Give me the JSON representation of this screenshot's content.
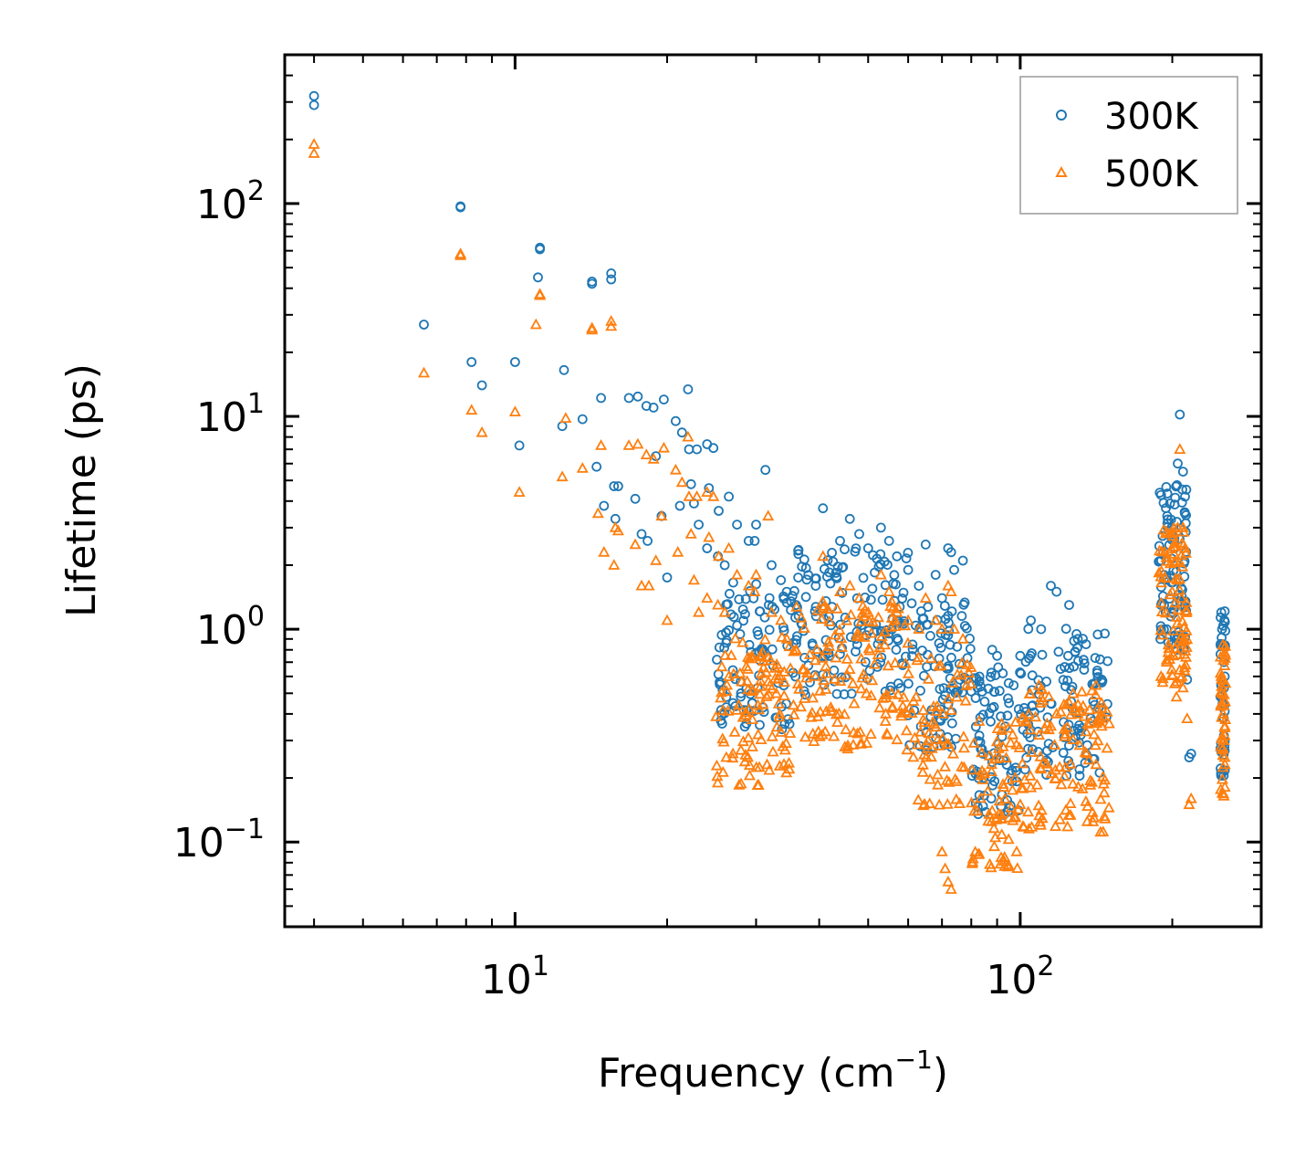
{
  "chart_data": {
    "type": "scatter",
    "title": "",
    "xlabel": "Frequency (cm",
    "xlabel_sup": "−1",
    "xlabel_end": ")",
    "ylabel": "Lifetime (ps)",
    "xscale": "log",
    "yscale": "log",
    "xlim": [
      3.5,
      300
    ],
    "ylim": [
      0.04,
      500
    ],
    "xticks": [
      {
        "value": 10,
        "base": "10",
        "exp": "1"
      },
      {
        "value": 100,
        "base": "10",
        "exp": "2"
      }
    ],
    "yticks": [
      {
        "value": 0.1,
        "base": "10",
        "exp": "−1"
      },
      {
        "value": 1,
        "base": "10",
        "exp": "0"
      },
      {
        "value": 10,
        "base": "10",
        "exp": "1"
      },
      {
        "value": 100,
        "base": "10",
        "exp": "2"
      }
    ],
    "legend_position": "top-right",
    "grid": false,
    "series": [
      {
        "name": "300K",
        "marker": "circle",
        "color": "#1f77b4",
        "points": [
          [
            4.0,
            320
          ],
          [
            4.0,
            290
          ],
          [
            7.8,
            97
          ],
          [
            7.8,
            96
          ],
          [
            11.2,
            62
          ],
          [
            11.2,
            61
          ],
          [
            11.1,
            45
          ],
          [
            14.2,
            43
          ],
          [
            14.2,
            42
          ],
          [
            15.5,
            47
          ],
          [
            15.5,
            44
          ],
          [
            6.6,
            27
          ],
          [
            8.2,
            18
          ],
          [
            8.6,
            14
          ],
          [
            10.0,
            18
          ],
          [
            10.2,
            7.3
          ],
          [
            12.5,
            16.5
          ],
          [
            12.4,
            9.0
          ],
          [
            13.6,
            9.7
          ],
          [
            14.8,
            12.2
          ],
          [
            14.5,
            5.8
          ],
          [
            15.0,
            3.8
          ],
          [
            15.7,
            4.7
          ],
          [
            16.0,
            4.7
          ],
          [
            15.8,
            3.3
          ],
          [
            16.8,
            12.2
          ],
          [
            17.5,
            12.4
          ],
          [
            18.2,
            11.2
          ],
          [
            18.8,
            11.0
          ],
          [
            19.7,
            12.0
          ],
          [
            17.3,
            4.1
          ],
          [
            17.8,
            2.8
          ],
          [
            18.3,
            2.6
          ],
          [
            19.0,
            6.5
          ],
          [
            19.5,
            3.4
          ],
          [
            20.8,
            9.5
          ],
          [
            21.4,
            8.4
          ],
          [
            22.0,
            13.4
          ],
          [
            22.1,
            7.0
          ],
          [
            22.9,
            7.0
          ],
          [
            24.0,
            7.4
          ],
          [
            24.7,
            7.1
          ],
          [
            21.2,
            3.8
          ],
          [
            22.3,
            4.8
          ],
          [
            20.0,
            1.75
          ],
          [
            22.6,
            3.9
          ],
          [
            23.1,
            3.1
          ],
          [
            24.2,
            4.6
          ],
          [
            25.3,
            3.6
          ],
          [
            24.0,
            2.4
          ],
          [
            25.2,
            2.2
          ],
          [
            26.0,
            2.0
          ],
          [
            26.5,
            4.2
          ],
          [
            27.5,
            3.1
          ],
          [
            29.0,
            2.6
          ],
          [
            29.8,
            2.6
          ],
          [
            30.0,
            3.1
          ],
          [
            31.3,
            5.6
          ],
          [
            32.2,
            2.0
          ],
          [
            33.6,
            1.7
          ],
          [
            34.5,
            1.5
          ],
          [
            36.0,
            1.3
          ],
          [
            40.7,
            3.7
          ],
          [
            44.0,
            2.6
          ],
          [
            46.0,
            3.3
          ],
          [
            48.0,
            2.8
          ],
          [
            50.0,
            2.4
          ],
          [
            53.0,
            3.0
          ],
          [
            55.0,
            2.6
          ],
          [
            57.0,
            2.2
          ],
          [
            60.0,
            1.9
          ],
          [
            63.0,
            1.6
          ],
          [
            65.0,
            2.5
          ],
          [
            68.0,
            1.8
          ],
          [
            70.0,
            1.4
          ],
          [
            72.0,
            2.4
          ],
          [
            73.0,
            2.3
          ],
          [
            74.0,
            1.9
          ],
          [
            77.0,
            2.1
          ],
          [
            26.2,
            0.43
          ],
          [
            27.0,
            0.45
          ],
          [
            28.0,
            0.5
          ],
          [
            29.5,
            0.45
          ],
          [
            88.0,
            0.8
          ],
          [
            90.0,
            0.75
          ],
          [
            95.0,
            0.45
          ],
          [
            100.0,
            0.75
          ],
          [
            105.0,
            1.1
          ],
          [
            110.0,
            1.0
          ],
          [
            115.0,
            1.6
          ],
          [
            118.0,
            1.5
          ],
          [
            125.0,
            1.3
          ],
          [
            130.0,
            0.9
          ],
          [
            135.0,
            0.85
          ],
          [
            140.0,
            0.55
          ],
          [
            145.0,
            0.58
          ],
          [
            190.0,
            1.3
          ],
          [
            195.0,
            1.0
          ],
          [
            200.0,
            2.8
          ],
          [
            205.0,
            6.0
          ],
          [
            207.0,
            10.2
          ],
          [
            210.0,
            5.5
          ],
          [
            212.0,
            4.2
          ],
          [
            214.0,
            0.58
          ],
          [
            216.0,
            0.25
          ],
          [
            218.0,
            0.26
          ],
          [
            250.0,
            1.2
          ],
          [
            251.0,
            1.0
          ],
          [
            252.0,
            0.85
          ],
          [
            253.0,
            0.7
          ],
          [
            254.0,
            0.6
          ]
        ]
      },
      {
        "name": "500K",
        "marker": "triangle",
        "color": "#ff7f0e",
        "points": [
          [
            4.0,
            190
          ],
          [
            4.0,
            172
          ],
          [
            7.8,
            58
          ],
          [
            7.8,
            57
          ],
          [
            11.2,
            37.5
          ],
          [
            11.2,
            37
          ],
          [
            11.0,
            27
          ],
          [
            14.2,
            26
          ],
          [
            14.2,
            25.5
          ],
          [
            15.5,
            28
          ],
          [
            15.5,
            26.5
          ],
          [
            6.6,
            16
          ],
          [
            8.2,
            10.7
          ],
          [
            8.6,
            8.4
          ],
          [
            10.0,
            10.5
          ],
          [
            10.2,
            4.4
          ],
          [
            12.4,
            5.2
          ],
          [
            12.6,
            9.8
          ],
          [
            13.6,
            5.7
          ],
          [
            14.8,
            7.3
          ],
          [
            14.6,
            3.5
          ],
          [
            15.0,
            2.3
          ],
          [
            15.7,
            2.0
          ],
          [
            16.0,
            2.9
          ],
          [
            15.8,
            3.0
          ],
          [
            16.8,
            7.3
          ],
          [
            17.5,
            7.4
          ],
          [
            18.2,
            6.6
          ],
          [
            18.8,
            6.3
          ],
          [
            19.7,
            7.1
          ],
          [
            17.3,
            2.5
          ],
          [
            17.8,
            1.6
          ],
          [
            18.4,
            1.6
          ],
          [
            19.0,
            2.1
          ],
          [
            19.5,
            3.4
          ],
          [
            20.8,
            5.6
          ],
          [
            21.4,
            4.9
          ],
          [
            22.0,
            8.0
          ],
          [
            22.1,
            4.2
          ],
          [
            22.9,
            4.2
          ],
          [
            24.0,
            4.4
          ],
          [
            24.7,
            4.2
          ],
          [
            21.0,
            2.3
          ],
          [
            22.3,
            2.8
          ],
          [
            20.0,
            1.1
          ],
          [
            22.6,
            1.7
          ],
          [
            23.1,
            1.2
          ],
          [
            24.2,
            2.7
          ],
          [
            25.3,
            2.2
          ],
          [
            24.0,
            1.4
          ],
          [
            25.2,
            1.3
          ],
          [
            26.0,
            1.2
          ],
          [
            26.5,
            2.4
          ],
          [
            27.5,
            1.8
          ],
          [
            29.0,
            1.6
          ],
          [
            29.8,
            1.5
          ],
          [
            30.0,
            1.8
          ],
          [
            31.7,
            3.4
          ],
          [
            32.2,
            1.2
          ],
          [
            33.6,
            1.1
          ],
          [
            34.5,
            0.9
          ],
          [
            36.0,
            0.8
          ],
          [
            40.7,
            2.2
          ],
          [
            44.0,
            1.5
          ],
          [
            46.0,
            1.6
          ],
          [
            48.0,
            1.4
          ],
          [
            50.0,
            1.2
          ],
          [
            53.0,
            1.8
          ],
          [
            55.0,
            1.5
          ],
          [
            57.0,
            1.2
          ],
          [
            60.0,
            1.1
          ],
          [
            63.0,
            1.0
          ],
          [
            65.0,
            1.4
          ],
          [
            68.0,
            1.1
          ],
          [
            70.0,
            1.0
          ],
          [
            72.0,
            1.6
          ],
          [
            73.0,
            1.5
          ],
          [
            74.0,
            1.0
          ],
          [
            77.0,
            0.9
          ],
          [
            26.2,
            0.25
          ],
          [
            27.0,
            0.26
          ],
          [
            28.0,
            0.27
          ],
          [
            29.5,
            0.28
          ],
          [
            70.0,
            0.09
          ],
          [
            71.0,
            0.075
          ],
          [
            72.0,
            0.065
          ],
          [
            73.0,
            0.06
          ],
          [
            88.0,
            0.14
          ],
          [
            90.0,
            0.13
          ],
          [
            95.0,
            0.13
          ],
          [
            100.0,
            0.15
          ],
          [
            105.0,
            0.18
          ],
          [
            110.0,
            0.22
          ],
          [
            115.0,
            0.35
          ],
          [
            118.0,
            0.4
          ],
          [
            125.0,
            0.45
          ],
          [
            130.0,
            0.4
          ],
          [
            135.0,
            0.33
          ],
          [
            140.0,
            0.32
          ],
          [
            145.0,
            0.35
          ],
          [
            150.0,
            0.36
          ],
          [
            190.0,
            0.6
          ],
          [
            195.0,
            0.7
          ],
          [
            200.0,
            1.5
          ],
          [
            205.0,
            3.0
          ],
          [
            207.0,
            7.0
          ],
          [
            210.0,
            3.0
          ],
          [
            212.0,
            2.4
          ],
          [
            214.0,
            0.38
          ],
          [
            216.0,
            0.15
          ],
          [
            218.0,
            0.16
          ],
          [
            250.0,
            0.6
          ],
          [
            251.0,
            0.5
          ],
          [
            252.0,
            0.4
          ],
          [
            253.0,
            0.3
          ],
          [
            254.0,
            0.25
          ]
        ]
      }
    ]
  }
}
